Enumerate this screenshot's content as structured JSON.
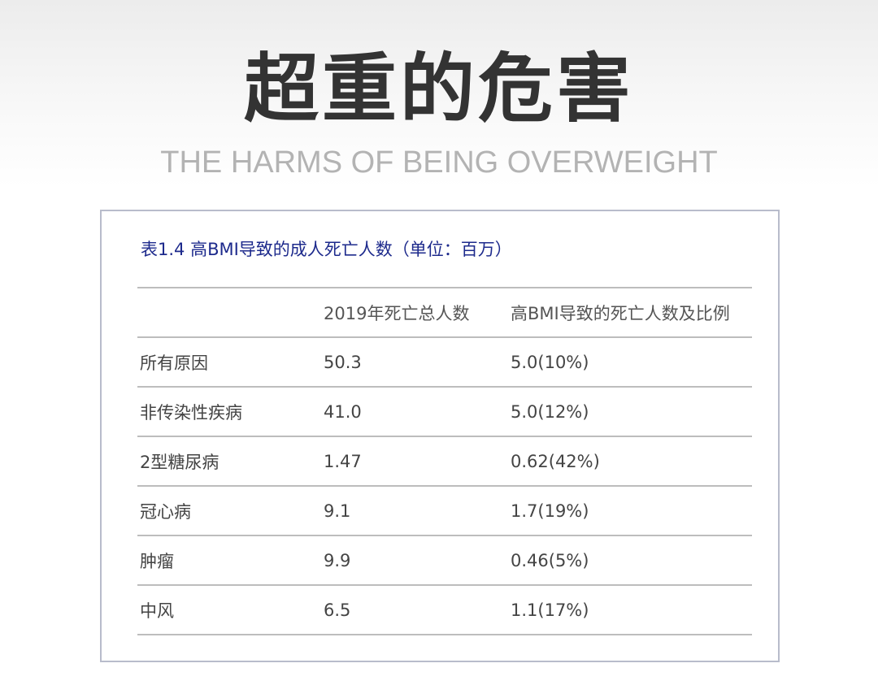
{
  "header": {
    "title": "超重的危害",
    "subtitle": "THE HARMS OF BEING OVERWEIGHT"
  },
  "table": {
    "caption": "表1.4 高BMI导致的成人死亡人数（单位：百万）",
    "columns": [
      "",
      "2019年死亡总人数",
      "高BMI导致的死亡人数及比例"
    ],
    "rows": [
      [
        "所有原因",
        "50.3",
        "5.0(10%)"
      ],
      [
        "非传染性疾病",
        "41.0",
        "5.0(12%)"
      ],
      [
        "2型糖尿病",
        "1.47",
        "0.62(42%)"
      ],
      [
        "冠心病",
        "9.1",
        "1.7(19%)"
      ],
      [
        "肿瘤",
        "9.9",
        "0.46(5%)"
      ],
      [
        "中风",
        "6.5",
        "1.1(17%)"
      ]
    ]
  },
  "colors": {
    "caption": "#1d2a8c",
    "title": "#333333",
    "subtitle": "#b3b3b3",
    "border": "#b8bccb"
  }
}
